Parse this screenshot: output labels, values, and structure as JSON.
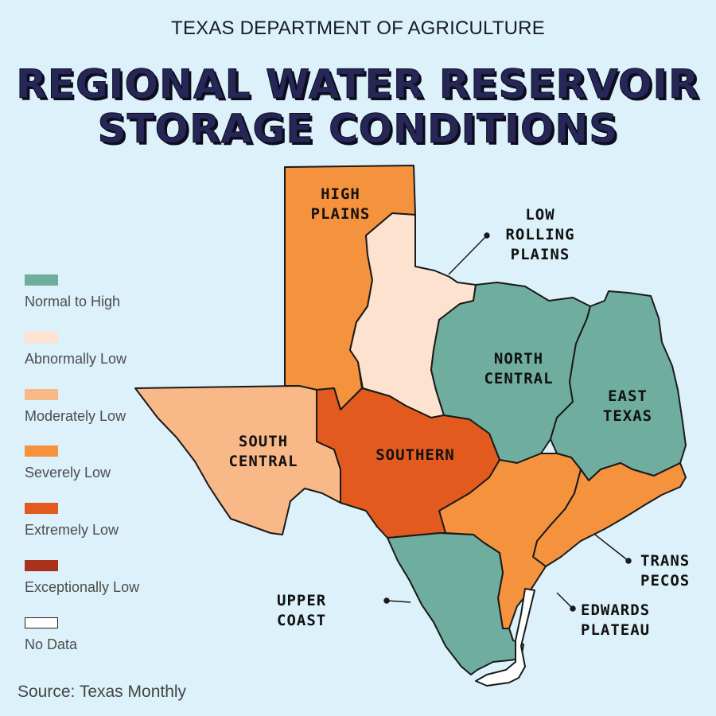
{
  "header": {
    "agency": "TEXAS DEPARTMENT OF AGRICULTURE",
    "title_line1": "REGIONAL WATER RESERVOIR",
    "title_line2": "STORAGE CONDITIONS"
  },
  "legend": {
    "items": [
      {
        "label": "Normal to High",
        "color": "#6fae9f"
      },
      {
        "label": "Abnormally Low",
        "color": "#fce2cf"
      },
      {
        "label": "Moderately Low",
        "color": "#f9b888"
      },
      {
        "label": "Severely Low",
        "color": "#f4923e"
      },
      {
        "label": "Extremely Low",
        "color": "#e35a1f"
      },
      {
        "label": "Exceptionally Low",
        "color": "#a8321c"
      },
      {
        "label": "No Data",
        "color": "#ffffff"
      }
    ]
  },
  "regions": [
    {
      "label_lines": [
        "HIGH",
        "PLAINS"
      ],
      "condition": "Severely Low"
    },
    {
      "label_lines": [
        "LOW",
        "ROLLING",
        "PLAINS"
      ],
      "condition": "Abnormally Low"
    },
    {
      "label_lines": [
        "NORTH",
        "CENTRAL"
      ],
      "condition": "Normal to High"
    },
    {
      "label_lines": [
        "EAST",
        "TEXAS"
      ],
      "condition": "Normal to High"
    },
    {
      "label_lines": [
        "TRANS",
        "PECOS"
      ],
      "condition": "Severely Low"
    },
    {
      "label_lines": [
        "EDWARDS",
        "PLATEAU"
      ],
      "condition": "Severely Low"
    },
    {
      "label_lines": [
        "UPPER",
        "COAST"
      ],
      "condition": "Normal to High"
    },
    {
      "label_lines": [
        "SOUTH",
        "CENTRAL"
      ],
      "condition": "Moderately Low"
    },
    {
      "label_lines": [
        "SOUTHERN"
      ],
      "condition": "Extremely Low"
    }
  ],
  "source": "Source: Texas Monthly"
}
